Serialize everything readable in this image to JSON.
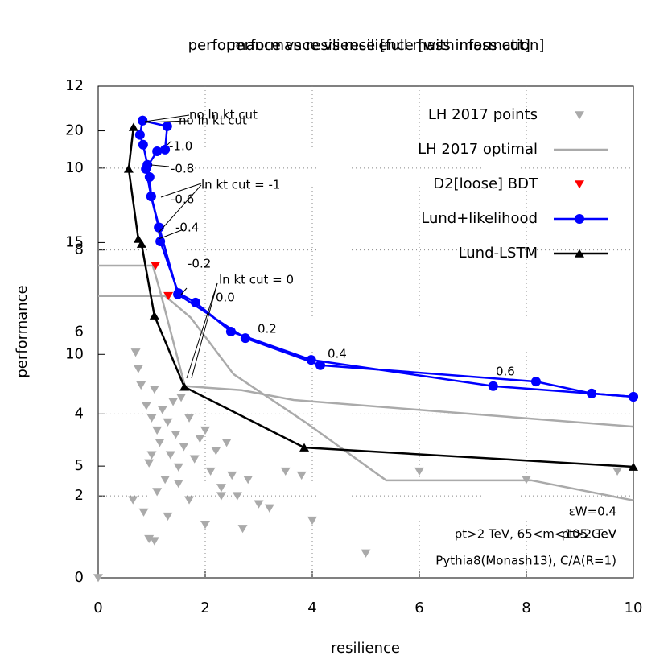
{
  "chart_data": {
    "type": "line",
    "title": "performance vs resilience [full mass information]",
    "subtitle": "performance vs resilience [with mass cut]",
    "x_label": "resilience",
    "y_label": "performance",
    "xlim": [
      0,
      10
    ],
    "xticks": [
      0,
      2,
      4,
      6,
      8,
      10
    ],
    "ylim": [
      0,
      12
    ],
    "yticks": [
      0,
      2,
      4,
      6,
      8,
      10,
      12
    ],
    "y2lim": [
      0,
      22
    ],
    "y2ticks": [
      5,
      10,
      15,
      20
    ],
    "grid": true,
    "legend": "top-right",
    "series": [
      {
        "name": "LH 2017 points",
        "color": "#aaaaaa",
        "style": "points",
        "x": [
          0.7,
          0.75,
          0.8,
          0.9,
          0.95,
          1.0,
          1.05,
          1.1,
          1.15,
          1.2,
          1.25,
          1.3,
          1.35,
          1.4,
          1.45,
          1.5,
          1.55,
          1.6,
          1.7,
          1.8,
          1.9,
          2.0,
          2.1,
          2.2,
          2.3,
          2.4,
          2.5,
          2.6,
          2.8,
          3.0,
          3.2,
          3.5,
          0.65,
          0.85,
          1.0,
          1.1,
          1.3,
          1.5,
          1.7,
          2.0,
          2.3,
          2.7,
          3.8,
          4.0,
          5.0,
          6.0,
          8.0,
          9.7,
          0.0,
          0.95,
          1.05
        ],
        "values": [
          5.5,
          5.1,
          4.7,
          4.2,
          2.8,
          3.9,
          4.6,
          3.6,
          3.3,
          4.1,
          2.4,
          3.8,
          3.0,
          4.3,
          3.5,
          2.7,
          4.4,
          3.2,
          3.9,
          2.9,
          3.4,
          3.6,
          2.6,
          3.1,
          2.2,
          3.3,
          2.5,
          2.0,
          2.4,
          1.8,
          1.7,
          2.6,
          1.9,
          1.6,
          3.0,
          2.1,
          1.5,
          2.3,
          1.9,
          1.3,
          2.0,
          1.2,
          2.5,
          1.4,
          0.6,
          2.6,
          2.4,
          2.6,
          0.0,
          0.95,
          0.9
        ]
      },
      {
        "name": "LH 2017 optimal",
        "color": "#aaaaaa",
        "style": "line",
        "x": [
          0,
          1.02,
          1.17,
          1.62,
          2.68,
          3.65,
          10
        ],
        "values": [
          7.62,
          7.62,
          6.93,
          4.68,
          4.58,
          4.34,
          3.69
        ]
      },
      {
        "color": "#aaaaaa",
        "style": "line",
        "x": [
          0,
          1.25,
          1.73,
          2.53,
          3.88,
          5.38,
          8.09,
          10
        ],
        "values": [
          6.88,
          6.88,
          6.35,
          4.97,
          3.79,
          2.38,
          2.38,
          1.89
        ]
      },
      {
        "name": "D2[loose] BDT",
        "color": "#ff0000",
        "style": "points",
        "x": [
          1.07,
          1.31
        ],
        "values": [
          7.62,
          6.88
        ]
      },
      {
        "name": "Lund+likelihood",
        "color": "#0000ff",
        "style": "linepoints",
        "x": [
          0.83,
          0.78,
          0.84,
          0.92,
          0.96,
          0.99,
          1.13,
          1.16,
          1.5,
          1.82,
          2.48,
          3.98,
          7.38,
          9.22,
          10
        ],
        "values": [
          11.16,
          10.81,
          10.57,
          10.08,
          9.78,
          9.31,
          8.55,
          8.21,
          6.95,
          6.72,
          6.01,
          5.32,
          4.68,
          4.5,
          4.42
        ]
      },
      {
        "color": "#0000ff",
        "style": "linepoints",
        "x": [
          0.83,
          1.29,
          1.25,
          1.1,
          0.89,
          0.99,
          1.14,
          1.49,
          2.75,
          4.15,
          8.18,
          9.22,
          10
        ],
        "values": [
          11.16,
          11.02,
          10.45,
          10.41,
          9.98,
          9.31,
          8.55,
          6.92,
          5.85,
          5.19,
          4.79,
          4.5,
          4.42
        ]
      },
      {
        "name": "Lund-LSTM",
        "color": "#000000",
        "style": "linetriangles",
        "x": [
          0.66,
          0.57,
          0.75,
          0.81,
          1.05,
          1.61,
          3.85,
          10
        ],
        "values": [
          11.0,
          9.98,
          8.27,
          8.15,
          6.4,
          4.66,
          3.18,
          2.71
        ]
      }
    ],
    "annotations": [
      "no ln kt cut",
      "no ln kt cut",
      "-1.0",
      "-0.8",
      "ln kt cut = -1",
      "-0.6",
      "-0.4",
      "-0.2",
      "ln kt cut = 0",
      "0.0",
      "0.2",
      "0.4",
      "0.6"
    ],
    "notes": [
      "εW=0.4",
      "pt>2 TeV, 65<m<105 GeV",
      "pt>2 TeV",
      "Pythia8(Monash13), C/A(R=1)"
    ]
  }
}
